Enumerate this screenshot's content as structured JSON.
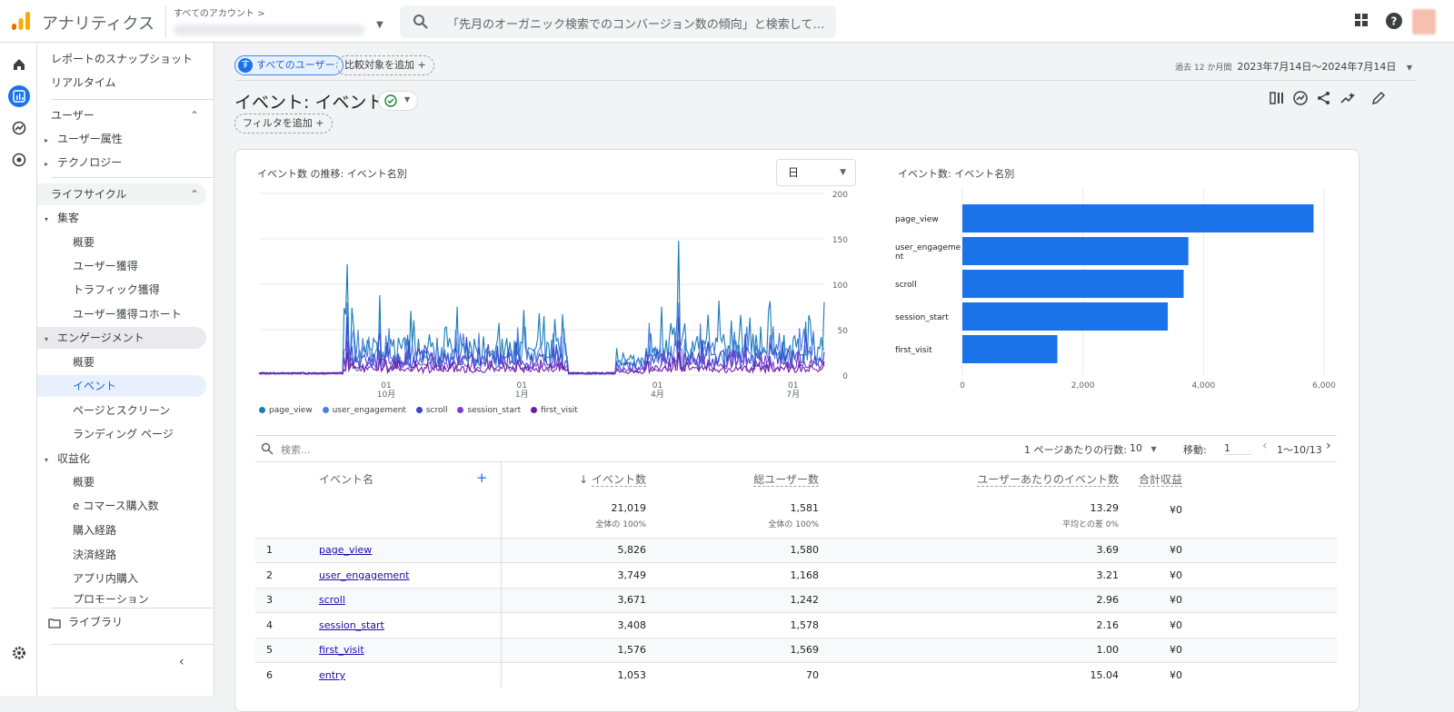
{
  "header": {
    "app_title": "アナリティクス",
    "account_label": "すべてのアカウント >",
    "search_placeholder": "「先月のオーガニック検索でのコンバージョン数の傾向」と検索してみてく...",
    "colors": {
      "brand_orange": "#f9ab00",
      "brand_dark": "#e37400",
      "accent": "#1a73e8"
    }
  },
  "rail": {
    "icons": [
      "home-icon",
      "reports-icon",
      "explore-icon",
      "advertising-icon",
      "settings-icon"
    ]
  },
  "sidebar": {
    "snapshot": "レポートのスナップショット",
    "realtime": "リアルタイム",
    "user_section": "ユーザー",
    "user_attr": "ユーザー属性",
    "tech": "テクノロジー",
    "lifecycle": "ライフサイクル",
    "acquisition": "集客",
    "acq_overview": "概要",
    "user_acq": "ユーザー獲得",
    "traffic_acq": "トラフィック獲得",
    "user_acq_cohort": "ユーザー獲得コホート",
    "engagement": "エンゲージメント",
    "eng_overview": "概要",
    "events": "イベント",
    "pages": "ページとスクリーン",
    "landing": "ランディング ページ",
    "monetization": "収益化",
    "mon_overview": "概要",
    "ecommerce": "e コマース購入数",
    "purchase_journey": "購入経路",
    "checkout_journey": "決済経路",
    "inapp": "アプリ内購入",
    "promotion": "プロモーション",
    "library": "ライブラリ"
  },
  "toolbar": {
    "all_users": "すべてのユーザー",
    "all_users_initial": "す",
    "add_compare": "比較対象を追加",
    "date_prefix": "過去 12 か月間",
    "date_range": "2023年7月14日～2024年7月14日",
    "page_title": "イベント: イベント名",
    "add_filter": "フィルタを追加"
  },
  "line_chart": {
    "title": "イベント数 の推移: イベント名別",
    "granularity": "日",
    "y_ticks": [
      "200",
      "150",
      "100",
      "50",
      "0"
    ],
    "x_ticks": [
      {
        "d": "01",
        "m": "10月"
      },
      {
        "d": "01",
        "m": "1月"
      },
      {
        "d": "01",
        "m": "4月"
      },
      {
        "d": "01",
        "m": "7月"
      }
    ]
  },
  "chart_data": [
    {
      "type": "line",
      "title": "イベント数 の推移: イベント名別",
      "ylim": [
        0,
        200
      ],
      "x_ticks": [
        "10月",
        "1月",
        "4月",
        "7月"
      ],
      "series": [
        {
          "name": "page_view",
          "color": "#1a7bb8",
          "peaks": [
            {
              "x": "9月上旬",
              "y": 122
            },
            {
              "x": "9月下旬",
              "y": 88
            },
            {
              "x": "4月下旬",
              "y": 148
            }
          ],
          "typical_active": 35
        },
        {
          "name": "user_engagement",
          "color": "#4a7fe0",
          "typical_active": 25
        },
        {
          "name": "scroll",
          "color": "#3845d0",
          "typical_active": 20
        },
        {
          "name": "session_start",
          "color": "#7b3fd0",
          "typical_active": 12
        },
        {
          "name": "first_visit",
          "color": "#6b1ea0",
          "typical_active": 8
        }
      ]
    },
    {
      "type": "bar",
      "title": "イベント数: イベント名別",
      "categories": [
        "page_view",
        "user_engagement",
        "scroll",
        "session_start",
        "first_visit"
      ],
      "values": [
        5826,
        3749,
        3671,
        3408,
        1576
      ],
      "xlim": [
        0,
        6000
      ],
      "x_ticks": [
        "0",
        "2,000",
        "4,000",
        "6,000"
      ],
      "color": "#1a73e8"
    }
  ],
  "bar_chart": {
    "title": "イベント数: イベント名別",
    "labels": [
      "page_view",
      "user_engageme",
      "nt",
      "scroll",
      "session_start",
      "first_visit"
    ],
    "x_ticks": [
      "0",
      "2,000",
      "4,000",
      "6,000"
    ]
  },
  "table": {
    "search_placeholder": "検索...",
    "rows_per_page_label": "1 ページあたりの行数:",
    "rows_per_page": "10",
    "goto_label": "移動:",
    "goto_value": "1",
    "page_info": "1～10/13",
    "headers": {
      "event_name": "イベント名",
      "event_count": "イベント数",
      "total_users": "総ユーザー数",
      "per_user": "ユーザーあたりのイベント数",
      "revenue": "合計収益"
    },
    "totals": {
      "event_count": "21,019",
      "event_count_sub": "全体の 100%",
      "total_users": "1,581",
      "total_users_sub": "全体の 100%",
      "per_user": "13.29",
      "per_user_sub": "平均との差 0%",
      "revenue": "¥0"
    },
    "rows": [
      {
        "i": "1",
        "name": "page_view",
        "count": "5,826",
        "users": "1,580",
        "per": "3.69",
        "rev": "¥0"
      },
      {
        "i": "2",
        "name": "user_engagement",
        "count": "3,749",
        "users": "1,168",
        "per": "3.21",
        "rev": "¥0"
      },
      {
        "i": "3",
        "name": "scroll",
        "count": "3,671",
        "users": "1,242",
        "per": "2.96",
        "rev": "¥0"
      },
      {
        "i": "4",
        "name": "session_start",
        "count": "3,408",
        "users": "1,578",
        "per": "2.16",
        "rev": "¥0"
      },
      {
        "i": "5",
        "name": "first_visit",
        "count": "1,576",
        "users": "1,569",
        "per": "1.00",
        "rev": "¥0"
      },
      {
        "i": "6",
        "name": "entry",
        "count": "1,053",
        "users": "70",
        "per": "15.04",
        "rev": "¥0"
      }
    ]
  }
}
